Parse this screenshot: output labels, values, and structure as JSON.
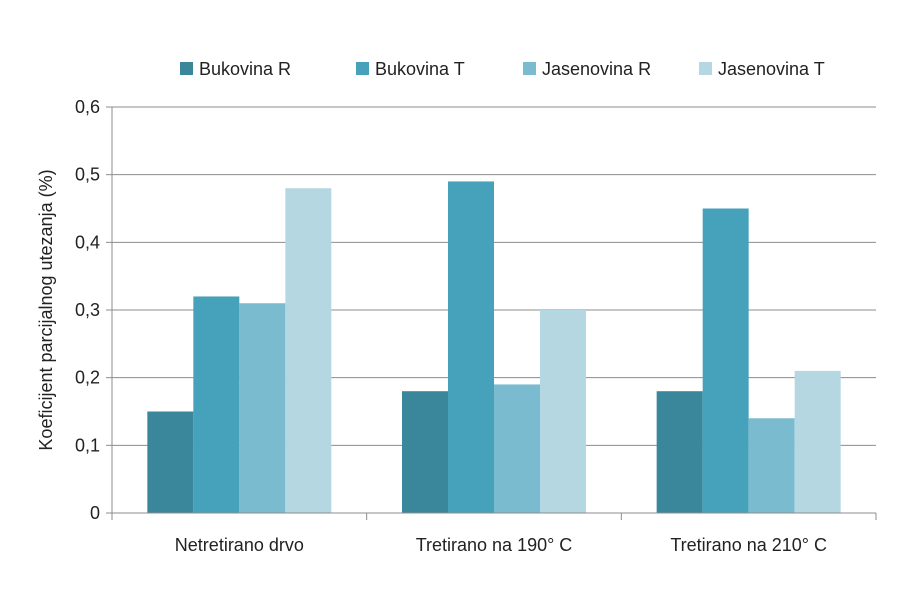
{
  "chart_data": {
    "type": "bar",
    "title": "",
    "xlabel": "",
    "ylabel": "Koeficijent parcijalnog utezanja (%)",
    "ylim": [
      0,
      0.6
    ],
    "yticks": [
      0,
      0.1,
      0.2,
      0.3,
      0.4,
      0.5,
      0.6
    ],
    "ytick_labels": [
      "0",
      "0,1",
      "0,2",
      "0,3",
      "0,4",
      "0,5",
      "0,6"
    ],
    "grid": true,
    "legend_position": "top",
    "categories": [
      "Netretirano drvo",
      "Tretirano na 190° C",
      "Tretirano na 210° C"
    ],
    "series": [
      {
        "name": "Bukovina R",
        "color": "#3a869b",
        "values": [
          0.15,
          0.18,
          0.18
        ]
      },
      {
        "name": "Bukovina T",
        "color": "#46a2ba",
        "values": [
          0.32,
          0.49,
          0.45
        ]
      },
      {
        "name": "Jasenovina R",
        "color": "#7bbbd0",
        "values": [
          0.31,
          0.19,
          0.14
        ]
      },
      {
        "name": "Jasenovina T",
        "color": "#b5d7e2",
        "values": [
          0.48,
          0.3,
          0.21
        ]
      }
    ]
  }
}
